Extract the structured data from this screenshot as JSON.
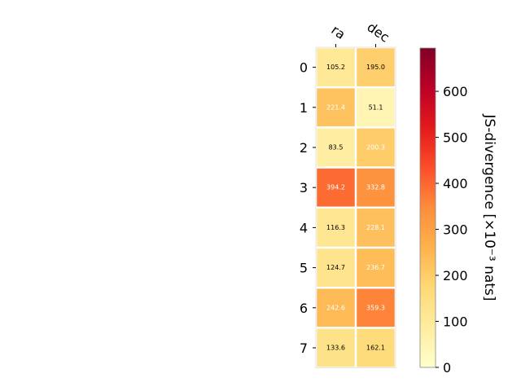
{
  "chart_data": {
    "type": "heatmap",
    "columns": [
      "ra",
      "dec"
    ],
    "rows": [
      "0",
      "1",
      "2",
      "3",
      "4",
      "5",
      "6",
      "7"
    ],
    "values": [
      [
        105.2,
        195.0
      ],
      [
        221.4,
        51.1
      ],
      [
        83.5,
        200.3
      ],
      [
        394.2,
        332.8
      ],
      [
        116.3,
        228.1
      ],
      [
        124.7,
        236.7
      ],
      [
        242.6,
        359.3
      ],
      [
        133.6,
        162.1
      ]
    ],
    "value_labels": [
      [
        "105.2",
        "195.0"
      ],
      [
        "221.4",
        "51.1"
      ],
      [
        "83.5",
        "200.3"
      ],
      [
        "394.2",
        "332.8"
      ],
      [
        "116.3",
        "228.1"
      ],
      [
        "124.7",
        "236.7"
      ],
      [
        "242.6",
        "359.3"
      ],
      [
        "133.6",
        "162.1"
      ]
    ],
    "white_label_threshold": 200,
    "colormap": "YlOrRd",
    "colorbar": {
      "label": "JS-divergence [×10⁻³ nats]",
      "range": [
        0,
        694
      ],
      "ticks": [
        0,
        100,
        200,
        300,
        400,
        500,
        600
      ],
      "tick_labels": [
        "0",
        "100",
        "200",
        "300",
        "400",
        "500",
        "600"
      ]
    }
  }
}
